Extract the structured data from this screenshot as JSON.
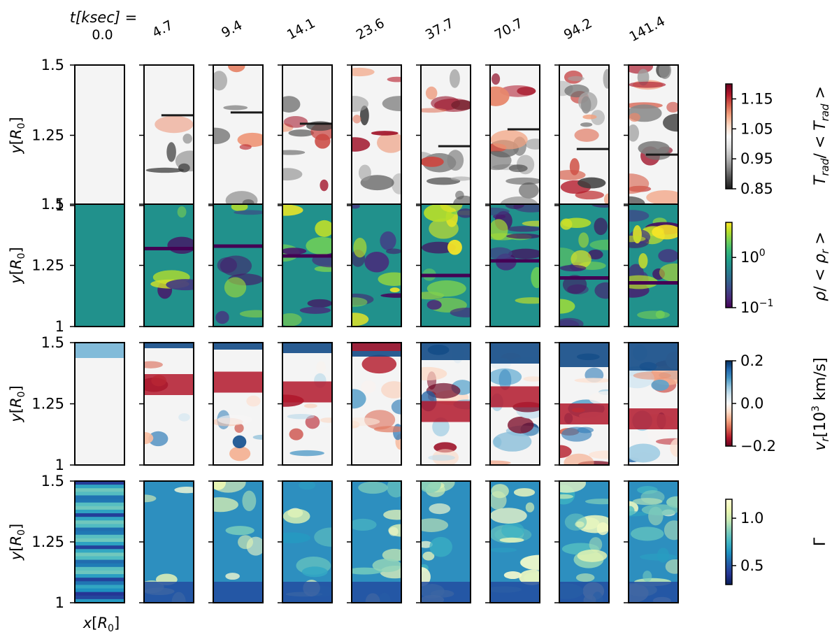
{
  "figure": {
    "time_label": "t[ksec] =",
    "times": [
      "0.0",
      "4.7",
      "9.4",
      "14.1",
      "23.6",
      "37.7",
      "70.7",
      "94.2",
      "141.4"
    ],
    "x_axis_label": "x[R0]",
    "y_axis_label": "y[R0]"
  },
  "chart_data": {
    "type": "heatmap",
    "layout": "grid of 4 rows (quantities) by 9 columns (time snapshots)",
    "title": "t[ksec] =",
    "xlabel": "x[R0]",
    "ylabel": "y[R0]",
    "ylim": [
      1,
      1.5
    ],
    "yticks": [
      1,
      1.25,
      1.5
    ],
    "ytick_labels": [
      "1",
      "1.25",
      "1.5"
    ],
    "time_ksec": [
      0.0,
      4.7,
      9.4,
      14.1,
      23.6,
      37.7,
      70.7,
      94.2,
      141.4
    ],
    "time_labels": [
      "0.0",
      "4.7",
      "9.4",
      "14.1",
      "23.6",
      "37.7",
      "70.7",
      "94.2",
      "141.4"
    ],
    "approx_front_y": [
      null,
      1.32,
      1.33,
      1.29,
      1.5,
      1.21,
      1.27,
      1.2,
      1.18
    ],
    "rows": [
      {
        "quantity": "radiation temperature ratio",
        "label": "T_rad / <T_rad>",
        "colormap": "RdGy_r",
        "colorbar_scale": "linear",
        "colorbar_range": [
          0.85,
          1.2
        ],
        "colorbar_ticks": [
          0.85,
          0.95,
          1.05,
          1.15
        ],
        "colorbar_tick_labels": [
          "0.85",
          "0.95",
          "1.05",
          "1.15"
        ]
      },
      {
        "quantity": "density ratio",
        "label": "ρ / <ρ_r>",
        "colormap": "viridis",
        "colorbar_scale": "log",
        "colorbar_range": [
          0.1,
          5
        ],
        "colorbar_ticks": [
          0.1,
          1
        ],
        "colorbar_tick_labels": [
          "10^-1",
          "10^0"
        ]
      },
      {
        "quantity": "radial velocity",
        "label": "v_r [10^3 km/s]",
        "colormap": "RdBu",
        "colorbar_scale": "linear",
        "colorbar_range": [
          -0.2,
          0.2
        ],
        "colorbar_ticks": [
          -0.2,
          0.0,
          0.2
        ],
        "colorbar_tick_labels": [
          "−0.2",
          "0.0",
          "0.2"
        ]
      },
      {
        "quantity": "Eddington ratio",
        "label": "Γ",
        "colormap": "YlGnBu_r",
        "colorbar_scale": "linear",
        "colorbar_range": [
          0.3,
          1.2
        ],
        "colorbar_ticks": [
          0.5,
          1.0
        ],
        "colorbar_tick_labels": [
          "0.5",
          "1.0"
        ]
      }
    ]
  },
  "colors": {
    "frame": "#000000",
    "background": "#ffffff"
  }
}
